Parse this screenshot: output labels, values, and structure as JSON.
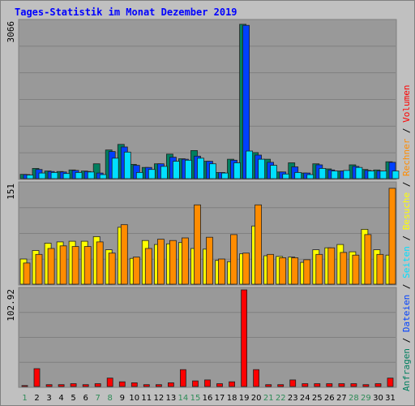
{
  "title": "Tages-Statistik im Monat Dezember 2019",
  "colors": {
    "background": "#c0c0c0",
    "panel": "#999999",
    "grid": "#808080",
    "anfragen": "#007f5f",
    "dateien": "#0040ff",
    "seiten": "#00e0ff",
    "besuche": "#ffff00",
    "rechner": "#ff8c00",
    "volumen": "#ff0000",
    "day_normal": "#000000",
    "day_weekend": "#2e8b57"
  },
  "chart_data": [
    {
      "type": "bar",
      "panel": "top",
      "ylim": [
        0,
        3066
      ],
      "ytick_label": "3066",
      "legend": [
        "Anfragen",
        "Dateien",
        "Seiten"
      ],
      "categories": [
        "1",
        "2",
        "3",
        "4",
        "5",
        "6",
        "7",
        "8",
        "9",
        "10",
        "11",
        "12",
        "13",
        "14",
        "15",
        "16",
        "17",
        "18",
        "19",
        "20",
        "21",
        "22",
        "23",
        "24",
        "25",
        "26",
        "27",
        "28",
        "29",
        "30",
        "31"
      ],
      "series": [
        {
          "name": "Anfragen",
          "color": "#007f5f",
          "values": [
            84,
            200,
            150,
            140,
            170,
            150,
            290,
            560,
            670,
            280,
            220,
            290,
            480,
            390,
            550,
            340,
            120,
            380,
            3020,
            510,
            380,
            130,
            310,
            110,
            290,
            190,
            150,
            270,
            180,
            170,
            330
          ]
        },
        {
          "name": "Dateien",
          "color": "#0040ff",
          "values": [
            80,
            180,
            140,
            130,
            160,
            140,
            110,
            530,
            620,
            260,
            220,
            290,
            420,
            380,
            440,
            340,
            120,
            360,
            3000,
            460,
            320,
            130,
            230,
            110,
            270,
            170,
            150,
            240,
            160,
            150,
            320
          ]
        },
        {
          "name": "Seiten",
          "color": "#00e0ff",
          "values": [
            70,
            110,
            120,
            100,
            120,
            130,
            80,
            400,
            520,
            120,
            180,
            240,
            340,
            360,
            400,
            290,
            110,
            310,
            540,
            380,
            260,
            90,
            120,
            80,
            200,
            150,
            160,
            220,
            150,
            150,
            150
          ]
        }
      ]
    },
    {
      "type": "bar",
      "panel": "middle",
      "ylim": [
        0,
        151
      ],
      "ytick_label": "151",
      "legend": [
        "Besuche",
        "Rechner"
      ],
      "categories": [
        "1",
        "2",
        "3",
        "4",
        "5",
        "6",
        "7",
        "8",
        "9",
        "10",
        "11",
        "12",
        "13",
        "14",
        "15",
        "16",
        "17",
        "18",
        "19",
        "20",
        "21",
        "22",
        "23",
        "24",
        "25",
        "26",
        "27",
        "28",
        "29",
        "30",
        "31"
      ],
      "series": [
        {
          "name": "Besuche",
          "color": "#ffff00",
          "values": [
            38,
            51,
            62,
            64,
            65,
            65,
            72,
            52,
            86,
            39,
            66,
            60,
            61,
            63,
            54,
            53,
            36,
            34,
            46,
            88,
            43,
            42,
            41,
            33,
            52,
            55,
            60,
            49,
            83,
            52,
            44
          ]
        },
        {
          "name": "Rechner",
          "color": "#ff8c00",
          "values": [
            32,
            45,
            54,
            58,
            57,
            57,
            64,
            47,
            90,
            41,
            54,
            68,
            66,
            70,
            120,
            71,
            38,
            75,
            47,
            120,
            45,
            40,
            40,
            37,
            45,
            55,
            48,
            44,
            75,
            45,
            145
          ]
        }
      ]
    },
    {
      "type": "bar",
      "panel": "bottom",
      "ylim": [
        0,
        102.92
      ],
      "ytick_label": "102.92",
      "legend": [
        "Volumen"
      ],
      "categories": [
        "1",
        "2",
        "3",
        "4",
        "5",
        "6",
        "7",
        "8",
        "9",
        "10",
        "11",
        "12",
        "13",
        "14",
        "15",
        "16",
        "17",
        "18",
        "19",
        "20",
        "21",
        "22",
        "23",
        "24",
        "25",
        "26",
        "27",
        "28",
        "29",
        "30",
        "31"
      ],
      "series": [
        {
          "name": "Volumen",
          "color": "#ff0000",
          "values": [
            1,
            19,
            2,
            2,
            3,
            2,
            3,
            9,
            5,
            4,
            2,
            2,
            4,
            18,
            6,
            7,
            3,
            5,
            102.92,
            18,
            2,
            2,
            7,
            3,
            3,
            3,
            3,
            3,
            2,
            3,
            9
          ]
        }
      ]
    }
  ],
  "weekend_days": [
    "1",
    "7",
    "8",
    "14",
    "15",
    "21",
    "22",
    "28",
    "29"
  ],
  "legend_right": {
    "top": [
      {
        "text": "Anfragen",
        "color": "#007f5f"
      },
      {
        "text": " / ",
        "color": "#000000"
      },
      {
        "text": "Dateien",
        "color": "#0040ff"
      },
      {
        "text": " / ",
        "color": "#000000"
      },
      {
        "text": "Seiten",
        "color": "#00e0ff"
      },
      {
        "text": " / ",
        "color": "#000000"
      },
      {
        "text": "Besuche",
        "color": "#ffff00"
      },
      {
        "text": " / ",
        "color": "#000000"
      },
      {
        "text": "Rechner",
        "color": "#ff8c00"
      },
      {
        "text": " / ",
        "color": "#000000"
      },
      {
        "text": "Volumen",
        "color": "#ff0000"
      }
    ]
  }
}
